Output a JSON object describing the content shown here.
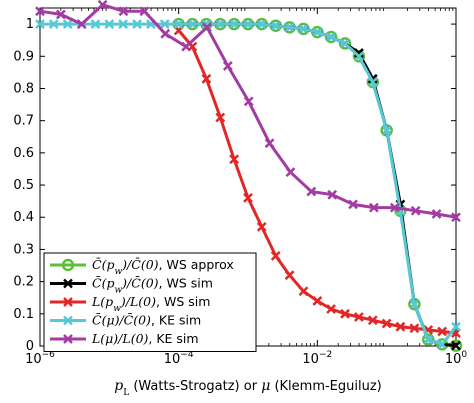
{
  "chart_data": {
    "type": "line",
    "xscale": "log",
    "xlim": [
      1e-06,
      1
    ],
    "ylim": [
      0,
      1.05
    ],
    "grid": false,
    "legend_position": "bottom-left",
    "xlabel": "p_L (Watts-Strogatz) or μ (Klemm-Eguiluz)",
    "ylabel": "",
    "x_ticks": [
      {
        "value": 1e-06,
        "base": "10",
        "exp": "−6"
      },
      {
        "value": 0.0001,
        "base": "10",
        "exp": "−4"
      },
      {
        "value": 0.01,
        "base": "10",
        "exp": "−2"
      },
      {
        "value": 1,
        "base": "10",
        "exp": "0"
      }
    ],
    "y_ticks": [
      0,
      0.1,
      0.2,
      0.3,
      0.4,
      0.5,
      0.6,
      0.7,
      0.8,
      0.9,
      1
    ],
    "y_tick_labels": [
      "0",
      "0.1",
      "0.2",
      "0.3",
      "0.4",
      "0.5",
      "0.6",
      "0.7",
      "0.8",
      "0.9",
      "1"
    ],
    "series": [
      {
        "name": "C̄(p_w)/C̄(0), WS approx",
        "color": "#5cbf3a",
        "marker": "circle",
        "x": [
          0.0001,
          0.000158,
          0.000251,
          0.000398,
          0.000631,
          0.001,
          0.00158,
          0.00251,
          0.00398,
          0.00631,
          0.01,
          0.0158,
          0.0251,
          0.0398,
          0.0631,
          0.1,
          0.158,
          0.251,
          0.398,
          0.631,
          1.0
        ],
        "y": [
          1.0,
          1.0,
          1.0,
          1.0,
          1.0,
          1.0,
          1.0,
          0.995,
          0.99,
          0.985,
          0.975,
          0.96,
          0.94,
          0.9,
          0.82,
          0.67,
          0.42,
          0.13,
          0.02,
          0.005,
          0.001
        ]
      },
      {
        "name": "C̄(p_w)/C̄(0), WS sim",
        "color": "#000000",
        "marker": "x",
        "x": [
          0.0001,
          0.000158,
          0.000251,
          0.000398,
          0.000631,
          0.001,
          0.00158,
          0.00251,
          0.00398,
          0.00631,
          0.01,
          0.0158,
          0.0251,
          0.0398,
          0.0631,
          0.1,
          0.158,
          0.251,
          0.398,
          0.631,
          1.0
        ],
        "y": [
          1.0,
          1.0,
          1.0,
          1.0,
          1.0,
          1.0,
          1.0,
          0.995,
          0.99,
          0.985,
          0.975,
          0.96,
          0.94,
          0.91,
          0.83,
          0.67,
          0.44,
          0.13,
          0.02,
          0.005,
          0.001
        ]
      },
      {
        "name": "L(p_w)/L(0), WS sim",
        "color": "#e32626",
        "marker": "x",
        "x": [
          0.0001,
          0.000158,
          0.000251,
          0.000398,
          0.000631,
          0.001,
          0.00158,
          0.00251,
          0.00398,
          0.00631,
          0.01,
          0.0158,
          0.0251,
          0.0398,
          0.0631,
          0.1,
          0.158,
          0.251,
          0.398,
          0.631,
          1.0
        ],
        "y": [
          0.98,
          0.93,
          0.83,
          0.71,
          0.58,
          0.46,
          0.37,
          0.28,
          0.22,
          0.17,
          0.14,
          0.115,
          0.1,
          0.09,
          0.08,
          0.07,
          0.06,
          0.055,
          0.05,
          0.045,
          0.04
        ]
      },
      {
        "name": "C̄(μ)/C̄(0), KE sim",
        "color": "#56c8d6",
        "marker": "x",
        "x": [
          1e-06,
          1.58e-06,
          2.51e-06,
          3.98e-06,
          6.31e-06,
          1e-05,
          1.58e-05,
          2.51e-05,
          3.98e-05,
          6.31e-05,
          0.0001,
          0.000158,
          0.000251,
          0.000398,
          0.000631,
          0.001,
          0.00158,
          0.00251,
          0.00398,
          0.00631,
          0.01,
          0.0158,
          0.0251,
          0.0398,
          0.0631,
          0.1,
          0.158,
          0.251,
          0.398,
          0.631,
          1.0
        ],
        "y": [
          1.0,
          1.0,
          1.0,
          1.0,
          1.0,
          1.0,
          1.0,
          1.0,
          1.0,
          1.0,
          1.0,
          1.0,
          1.0,
          1.0,
          1.0,
          1.0,
          1.0,
          0.995,
          0.99,
          0.985,
          0.975,
          0.96,
          0.94,
          0.9,
          0.82,
          0.67,
          0.42,
          0.13,
          0.02,
          0.005,
          0.06
        ]
      },
      {
        "name": "L(μ)/L(0), KE sim",
        "color": "#a33ba3",
        "marker": "x",
        "x": [
          1e-06,
          2e-06,
          4e-06,
          8e-06,
          1.6e-05,
          3.2e-05,
          6.4e-05,
          0.000128,
          0.000256,
          0.000512,
          0.001024,
          0.002048,
          0.004096,
          0.008192,
          0.016384,
          0.032768,
          0.065536,
          0.131072,
          0.262144,
          0.524288,
          1.0
        ],
        "y": [
          1.04,
          1.03,
          1.0,
          1.06,
          1.04,
          1.04,
          0.97,
          0.93,
          0.99,
          0.87,
          0.76,
          0.63,
          0.54,
          0.48,
          0.47,
          0.44,
          0.43,
          0.43,
          0.42,
          0.41,
          0.4
        ]
      }
    ]
  },
  "legend": [
    {
      "math": "C̄(p<tspan baseline-shift=\"sub\" font-size=\"9\">w</tspan>)/C̄(0)",
      "text": ", WS approx"
    },
    {
      "math": "C̄(p<tspan baseline-shift=\"sub\" font-size=\"9\">w</tspan>)/C̄(0)",
      "text": ", WS sim"
    },
    {
      "math": "L(p<tspan baseline-shift=\"sub\" font-size=\"9\">w</tspan>)/L(0)",
      "text": ", WS sim"
    },
    {
      "math": "C̄(μ)/C̄(0)",
      "text": ", KE sim"
    },
    {
      "math": "L(μ)/L(0)",
      "text": ", KE sim"
    }
  ],
  "xlabel_parts": {
    "p_italic": "p",
    "p_sub": "L",
    "ws": " (Watts-Strogatz) or ",
    "mu": "μ",
    "ke": " (Klemm-Eguiluz)"
  }
}
